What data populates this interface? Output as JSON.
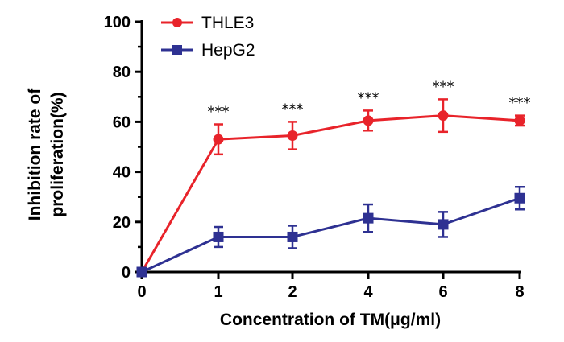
{
  "chart_data": {
    "type": "line",
    "title": "",
    "xlabel": "Concentration of TM(μg/ml)",
    "ylabel_line1": "Inhibition rate of",
    "ylabel_line2": "proliferation(%)",
    "x_tick_labels": [
      "0",
      "1",
      "2",
      "4",
      "6",
      "8"
    ],
    "y_ticks": [
      0,
      20,
      40,
      60,
      80,
      100
    ],
    "ylim": [
      0,
      100
    ],
    "grid": false,
    "legend_position": "top-left",
    "series": [
      {
        "name": "THLE3",
        "color": "#e8232a",
        "marker": "circle",
        "values": [
          0,
          53,
          54.5,
          60.5,
          62.5,
          60.5
        ],
        "errors": [
          0,
          6,
          5.5,
          4,
          6.5,
          2
        ]
      },
      {
        "name": "HepG2",
        "color": "#2e3192",
        "marker": "square",
        "values": [
          0,
          14,
          14,
          21.5,
          19,
          29.5
        ],
        "errors": [
          0,
          4,
          4.5,
          5.5,
          5,
          4.5
        ]
      }
    ],
    "annotations": [
      "***",
      "***",
      "***",
      "***",
      "***"
    ]
  }
}
